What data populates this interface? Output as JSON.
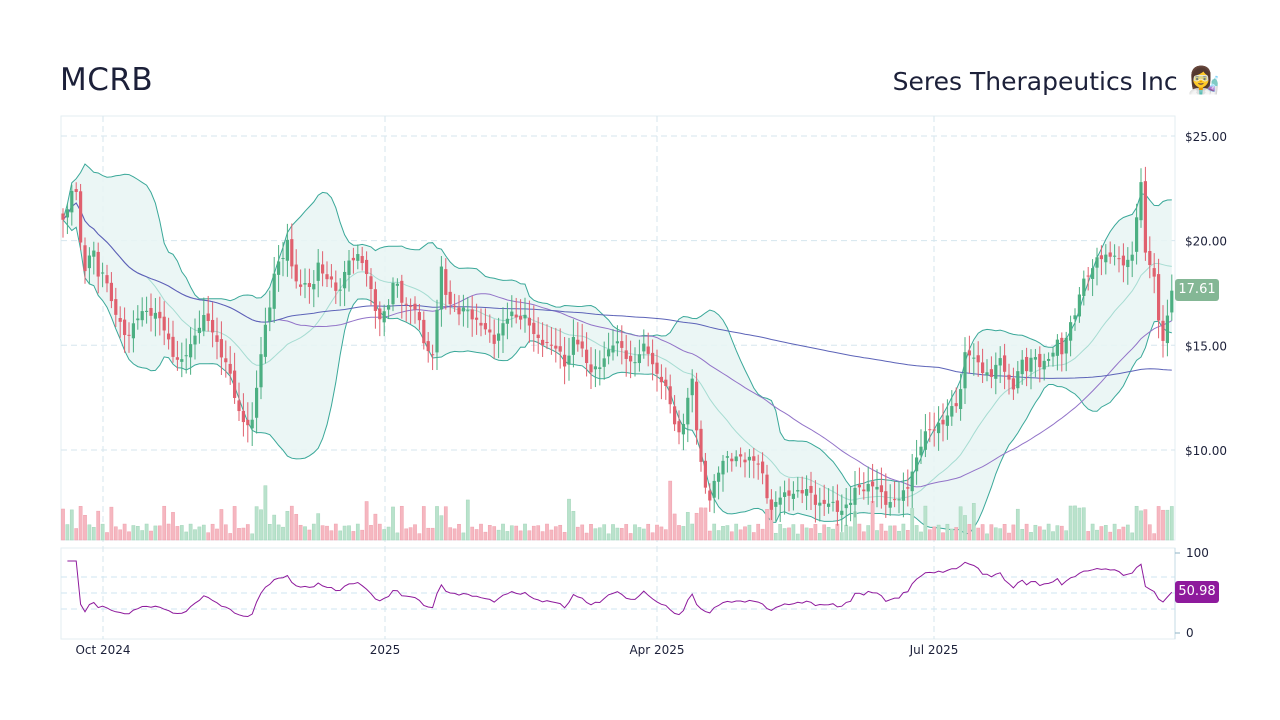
{
  "header": {
    "ticker": "MCRB",
    "company": "Seres Therapeutics Inc",
    "company_emoji": "👩‍🔬"
  },
  "badges": {
    "last_price": "17.61",
    "rsi_value": "50.98"
  },
  "colors": {
    "up": "#4caf82",
    "down": "#e0606e",
    "up_volume": "#b9e2cc",
    "down_volume": "#f5b7c0",
    "bb_band": "#3aa899",
    "bb_fill": "#e8f5f3",
    "bb_mid": "#a6dcd2",
    "ma_slow": "#5c63b8",
    "ma_mid": "#9273c8",
    "rsi": "#8e1a9c",
    "grid": "#d5e6ee",
    "price_badge": "#84b795",
    "rsi_badge": "#8e1a9c"
  },
  "chart_data": {
    "type": "candlestick",
    "title": "MCRB — Seres Therapeutics Inc",
    "x_tick_labels": [
      "Oct 2024",
      "2025",
      "Apr 2025",
      "Jul 2025"
    ],
    "y_tick_labels": [
      "$25.00",
      "$20.00",
      "$15.00",
      "$10.00"
    ],
    "y_ticks": [
      25,
      20,
      15,
      10
    ],
    "rsi_tick_labels": [
      "100",
      "0"
    ],
    "rsi_levels": [
      70,
      50,
      30
    ],
    "last_close": 17.61,
    "last_rsi": 50.98,
    "period": "Sep 2024 – Aug 2025 (daily)",
    "indicators": [
      "Bollinger Bands (20,2)",
      "SMA 50",
      "SMA 200",
      "Volume",
      "RSI (14)"
    ],
    "close_keypoints": [
      [
        63,
        20.8
      ],
      [
        70,
        21.8
      ],
      [
        75,
        23.0
      ],
      [
        80,
        20.5
      ],
      [
        86,
        18.0
      ],
      [
        92,
        20.0
      ],
      [
        98,
        18.2
      ],
      [
        104,
        19.0
      ],
      [
        110,
        17.0
      ],
      [
        118,
        16.2
      ],
      [
        126,
        15.6
      ],
      [
        134,
        15.8
      ],
      [
        142,
        16.6
      ],
      [
        150,
        16.8
      ],
      [
        158,
        16.2
      ],
      [
        166,
        15.6
      ],
      [
        174,
        14.6
      ],
      [
        182,
        14.0
      ],
      [
        190,
        15.0
      ],
      [
        198,
        16.0
      ],
      [
        206,
        16.2
      ],
      [
        214,
        15.6
      ],
      [
        222,
        14.6
      ],
      [
        230,
        13.4
      ],
      [
        238,
        12.0
      ],
      [
        246,
        11.3
      ],
      [
        252,
        11.0
      ],
      [
        258,
        13.6
      ],
      [
        264,
        15.8
      ],
      [
        270,
        17.0
      ],
      [
        276,
        18.6
      ],
      [
        282,
        19.2
      ],
      [
        288,
        20.2
      ],
      [
        294,
        18.2
      ],
      [
        300,
        17.4
      ],
      [
        306,
        18.3
      ],
      [
        312,
        17.6
      ],
      [
        318,
        19.0
      ],
      [
        324,
        17.8
      ],
      [
        330,
        18.6
      ],
      [
        336,
        17.6
      ],
      [
        342,
        17.8
      ],
      [
        348,
        18.8
      ],
      [
        356,
        19.6
      ],
      [
        364,
        18.8
      ],
      [
        372,
        17.2
      ],
      [
        380,
        16.4
      ],
      [
        388,
        16.8
      ],
      [
        396,
        18.2
      ],
      [
        404,
        17.0
      ],
      [
        412,
        16.8
      ],
      [
        420,
        16.0
      ],
      [
        428,
        14.8
      ],
      [
        434,
        14.4
      ],
      [
        440,
        18.8
      ],
      [
        446,
        17.6
      ],
      [
        452,
        17.0
      ],
      [
        458,
        16.4
      ],
      [
        464,
        16.6
      ],
      [
        470,
        16.8
      ],
      [
        478,
        16.0
      ],
      [
        486,
        15.6
      ],
      [
        494,
        15.4
      ],
      [
        502,
        15.8
      ],
      [
        510,
        16.4
      ],
      [
        518,
        16.6
      ],
      [
        526,
        16.2
      ],
      [
        534,
        15.4
      ],
      [
        542,
        15.4
      ],
      [
        550,
        14.8
      ],
      [
        558,
        14.8
      ],
      [
        566,
        14.2
      ],
      [
        574,
        15.2
      ],
      [
        582,
        14.8
      ],
      [
        590,
        14.0
      ],
      [
        598,
        13.6
      ],
      [
        606,
        14.6
      ],
      [
        614,
        15.4
      ],
      [
        622,
        14.6
      ],
      [
        630,
        14.2
      ],
      [
        638,
        14.6
      ],
      [
        646,
        14.8
      ],
      [
        654,
        14.0
      ],
      [
        662,
        13.4
      ],
      [
        668,
        12.4
      ],
      [
        674,
        11.4
      ],
      [
        680,
        10.8
      ],
      [
        686,
        12.0
      ],
      [
        692,
        13.2
      ],
      [
        698,
        10.4
      ],
      [
        704,
        8.6
      ],
      [
        710,
        7.6
      ],
      [
        716,
        8.4
      ],
      [
        722,
        9.6
      ],
      [
        728,
        9.8
      ],
      [
        736,
        9.4
      ],
      [
        744,
        9.6
      ],
      [
        752,
        9.8
      ],
      [
        760,
        9.0
      ],
      [
        766,
        8.0
      ],
      [
        772,
        7.2
      ],
      [
        778,
        7.8
      ],
      [
        786,
        7.6
      ],
      [
        794,
        8.2
      ],
      [
        802,
        8.0
      ],
      [
        810,
        7.8
      ],
      [
        818,
        7.6
      ],
      [
        826,
        7.4
      ],
      [
        834,
        7.2
      ],
      [
        842,
        7.3
      ],
      [
        850,
        7.4
      ],
      [
        858,
        8.2
      ],
      [
        866,
        8.4
      ],
      [
        874,
        8.2
      ],
      [
        882,
        7.8
      ],
      [
        890,
        7.6
      ],
      [
        898,
        7.5
      ],
      [
        906,
        8.0
      ],
      [
        912,
        9.2
      ],
      [
        918,
        9.6
      ],
      [
        924,
        10.6
      ],
      [
        930,
        11.0
      ],
      [
        936,
        11.4
      ],
      [
        942,
        11.0
      ],
      [
        948,
        11.6
      ],
      [
        954,
        12.2
      ],
      [
        960,
        12.8
      ],
      [
        966,
        14.8
      ],
      [
        972,
        14.2
      ],
      [
        978,
        14.4
      ],
      [
        984,
        13.8
      ],
      [
        990,
        13.2
      ],
      [
        996,
        14.0
      ],
      [
        1002,
        14.6
      ],
      [
        1008,
        13.4
      ],
      [
        1014,
        12.6
      ],
      [
        1020,
        14.4
      ],
      [
        1026,
        14.0
      ],
      [
        1032,
        14.6
      ],
      [
        1038,
        13.8
      ],
      [
        1044,
        14.2
      ],
      [
        1050,
        14.6
      ],
      [
        1056,
        15.2
      ],
      [
        1062,
        14.4
      ],
      [
        1068,
        15.8
      ],
      [
        1074,
        16.6
      ],
      [
        1080,
        17.4
      ],
      [
        1086,
        18.2
      ],
      [
        1092,
        18.6
      ],
      [
        1098,
        19.6
      ],
      [
        1104,
        18.9
      ],
      [
        1110,
        19.2
      ],
      [
        1116,
        19.4
      ],
      [
        1122,
        19.1
      ],
      [
        1128,
        18.8
      ],
      [
        1134,
        19.3
      ],
      [
        1140,
        23.8
      ],
      [
        1144,
        20.0
      ],
      [
        1148,
        19.0
      ],
      [
        1152,
        18.4
      ],
      [
        1156,
        17.6
      ],
      [
        1160,
        15.6
      ],
      [
        1164,
        15.2
      ],
      [
        1168,
        16.8
      ],
      [
        1172,
        17.61
      ]
    ]
  }
}
